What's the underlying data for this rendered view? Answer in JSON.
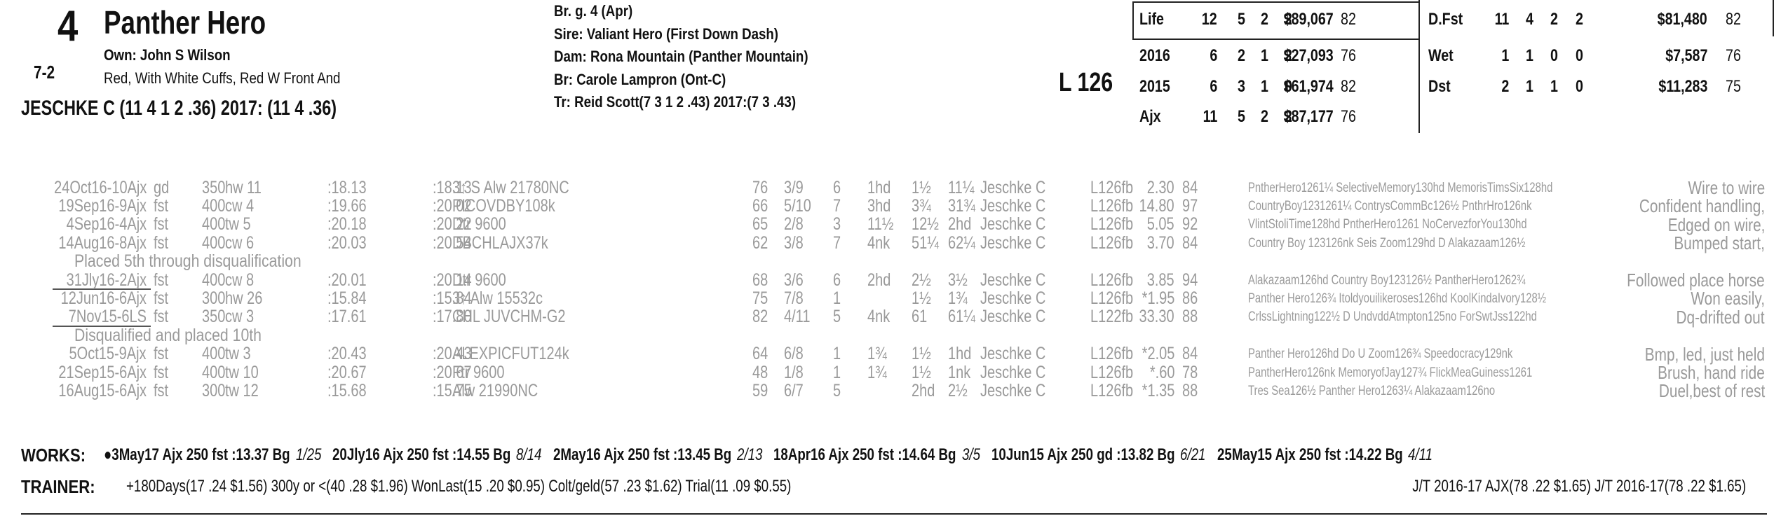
{
  "header": {
    "number": "4",
    "odds": "7-2",
    "name": "Panther Hero",
    "owner": "Own: John S Wilson",
    "silks": "Red, With White Cuffs, Red W Front And",
    "jockey": "JESCHKE C (11 4 1 2 .36) 2017: (11 4 .36)",
    "breed": "Br. g. 4 (Apr)",
    "sire": "Sire: Valiant Hero (First Down Dash)",
    "dam": "Dam: Rona Mountain (Panther Mountain)",
    "breeder": "Br:   Carole Lampron (Ont-C)",
    "trainer": "Tr:   Reid Scott(7 3 1 2 .43)  2017:(7 3 .43)",
    "weight": "L 126"
  },
  "stats": {
    "left": [
      [
        "Life",
        "12",
        "5",
        "2",
        "2",
        "$89,067",
        "82"
      ],
      [
        "2016",
        "6",
        "2",
        "1",
        "2",
        "$27,093",
        "76"
      ],
      [
        "2015",
        "6",
        "3",
        "1",
        "0",
        "$61,974",
        "82"
      ],
      [
        "Ajx",
        "11",
        "5",
        "2",
        "2",
        "$87,177",
        "76"
      ]
    ],
    "right": [
      [
        "D.Fst",
        "11",
        "4",
        "2",
        "2",
        "$81,480",
        "82"
      ],
      [
        "Wet",
        "1",
        "1",
        "0",
        "0",
        "$7,587",
        "76"
      ],
      [
        "Dst",
        "2",
        "1",
        "1",
        "0",
        "$11,283",
        "75"
      ]
    ]
  },
  "races": [
    {
      "cells": [
        "24Oct16-10Ajx",
        "gd",
        "350",
        "hw 11",
        ":18.13",
        ":18.13",
        "3↑ S Alw 21780NC",
        "76",
        "3/9",
        "6",
        "1hd",
        "1½",
        "11¼",
        "Jeschke C",
        "L126fb",
        "2.30",
        "84",
        "PntherHero1261¼ SelectiveMemory130hd MemorisTimsSix128hd",
        "Wire to wire"
      ]
    },
    {
      "cells": [
        "19Sep16-9Ajx",
        "fst",
        "400",
        "cw 4",
        ":19.66",
        ":20.02",
        "PICOVDBY108k",
        "66",
        "5/10",
        "7",
        "3hd",
        "3¾",
        "31¾",
        "Jeschke C",
        "L126fb",
        "14.80",
        "97",
        "CountryBoy1231261¼ ContrysCommBc126½ PnthrHro126nk",
        "Confident handling,"
      ]
    },
    {
      "cells": [
        "4Sep16-4Ajx",
        "fst",
        "400",
        "tw 5",
        ":20.18",
        ":20.22",
        "Dtr 9600",
        "65",
        "2/8",
        "3",
        "11½",
        "12½",
        "2hd",
        "Jeschke C",
        "L126fb",
        "5.05",
        "92",
        "VlintStoliTime128hd PntherHero1261 NoCervezforYou130hd",
        "Edged on wire,"
      ]
    },
    {
      "cells": [
        "14Aug16-8Ajx",
        "fst",
        "400",
        "cw 6",
        ":20.03",
        ":20.54",
        "DBCHLAJX37k",
        "62",
        "3/8",
        "7",
        "4nk",
        "51¼",
        "62¼",
        "Jeschke C",
        "L126fb",
        "3.70",
        "84",
        "Country Boy 123126nk Seis Zoom129hd D Alakazaam126½",
        "Bumped start,"
      ],
      "note": "Placed 5th through disqualification"
    },
    {
      "cells": [
        "31Jly16-2Ajx",
        "fst",
        "400",
        "cw 8",
        ":20.01",
        ":20.14",
        "Dtr 9600",
        "68",
        "3/6",
        "6",
        "2hd",
        "2½",
        "3½",
        "Jeschke C",
        "L126fb",
        "3.85",
        "94",
        "Alakazaam126hd Country Boy123126½ PantherHero1262¾",
        "Followed place horse"
      ]
    },
    {
      "cells": [
        "12Jun16-6Ajx",
        "fst",
        "300",
        "hw 26",
        ":15.84",
        ":15.84",
        "3↑ Alw 15532c",
        "75",
        "7/8",
        "1",
        "",
        "1½",
        "1¾",
        "Jeschke C",
        "L126fb",
        "*1.95",
        "86",
        "Panther Hero126¾ Itoldyouilikeroses126hd KoolKindaIvory128½",
        "Won easily,"
      ]
    },
    {
      "cells": [
        "7Nov15-6LS",
        "fst",
        "350",
        "cw 3",
        ":17.61",
        ":17.80",
        "CHL JUVCHM-G2",
        "82",
        "4/11",
        "5",
        "4nk",
        "61",
        "61¼",
        "Jeschke C",
        "L122fb",
        "33.30",
        "88",
        "CrlssLightning122½ D UndvddAtmpton125no ForSwtJss122hd",
        "Dq-drifted out"
      ],
      "note": "Disqualified and placed 10th"
    },
    {
      "cells": [
        "5Oct15-9Ajx",
        "fst",
        "400",
        "tw 3",
        ":20.43",
        ":20.43",
        "ALEXPICFUT124k",
        "64",
        "6/8",
        "1",
        "1¾",
        "1½",
        "1hd",
        "Jeschke C",
        "L126fb",
        "*2.05",
        "84",
        "Panther Hero126hd Do U Zoom126¾ Speedocracy129nk",
        "Bmp, led, just held"
      ]
    },
    {
      "cells": [
        "21Sep15-6Ajx",
        "fst",
        "400",
        "tw 10",
        ":20.67",
        ":20.67",
        "Ftr 9600",
        "48",
        "1/8",
        "1",
        "1¾",
        "1½",
        "1nk",
        "Jeschke C",
        "L126fb",
        "*.60",
        "78",
        "PantherHero126nk MemoryofJay127¾ FlickMeaGuiness1261",
        "Brush, hand ride"
      ]
    },
    {
      "cells": [
        "16Aug15-6Ajx",
        "fst",
        "300",
        "tw 12",
        ":15.68",
        ":15.75",
        "Alw 21990NC",
        "59",
        "6/7",
        "5",
        "",
        "2hd",
        "2½",
        "Jeschke C",
        "L126fb",
        "*1.35",
        "88",
        "Tres Sea126½ Panther Hero1263¼ Alakazaam126no",
        "Duel,best of rest"
      ]
    }
  ],
  "works": {
    "label": "WORKS:",
    "items": [
      [
        "●3May17 Ajx 250 fst :13.37 Bg",
        "1/25"
      ],
      [
        "20Jly16 Ajx 250 fst :14.55 Bg",
        "8/14"
      ],
      [
        "2May16 Ajx 250 fst :13.45 Bg",
        "2/13"
      ],
      [
        "18Apr16 Ajx 250 fst :14.64 Bg",
        "3/5"
      ],
      [
        "10Jun15 Ajx 250 gd :13.82 Bg",
        "6/21"
      ],
      [
        "25May15 Ajx 250 fst :14.22 Bg",
        "4/11"
      ]
    ]
  },
  "trainer": {
    "label": "TRAINER:",
    "stats": "+180Days(17 .24 $1.56) 300y or <(40 .28 $1.96) WonLast(15 .20 $0.95) Colt/geld(57 .23 $1.62) Trial(11 .09 $0.55)",
    "jt": "J/T 2016-17 AJX(78 .22 $1.65)  J/T 2016-17(78 .22 $1.65)"
  }
}
